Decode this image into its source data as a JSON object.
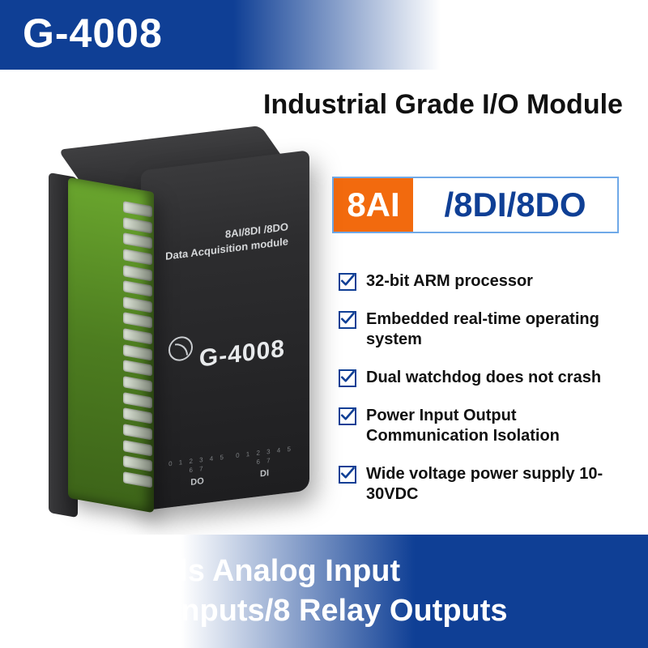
{
  "colors": {
    "topbar_left": "#0f3f95",
    "topbar_right": "#ffffff",
    "bottombar_left": "#0f3f95",
    "bottombar_right": "#ffffff",
    "text_dark": "#111111",
    "badge_orange": "#f26a0e",
    "badge_border": "#6fa9e8",
    "badge_bluebox_text": "#0f3f95",
    "check_border": "#0f3f95",
    "check_mark": "#0f3f95",
    "device_body": "#2b2b2d",
    "device_green": "#4d7d20"
  },
  "header": {
    "model": "G-4008",
    "headline": "Industrial Grade I/O Module"
  },
  "badge": {
    "orange_text": "8AI",
    "blue_text": "/8DI/8DO"
  },
  "features": [
    "32-bit ARM processor",
    "Embedded real-time operating system",
    "Dual watchdog does not crash",
    "Power Input Output Communication Isolation",
    "Wide voltage power supply 10-30VDC"
  ],
  "device": {
    "side_text_small_1": "8AI/8DI /8DO",
    "side_text_small_2": "Data Acquisition module",
    "side_text_big": "G-4008",
    "port_group_left": {
      "label": "DO",
      "numbers": "0 1 2 3 4 5 6 7"
    },
    "port_group_right": {
      "label": "DI",
      "numbers": "0 1 2 3 4 5 6 7"
    },
    "terminal_count": 18
  },
  "footer": {
    "line1": "8-Channels Analog Input",
    "line2": "8 Switch Inputs/8 Relay Outputs"
  }
}
